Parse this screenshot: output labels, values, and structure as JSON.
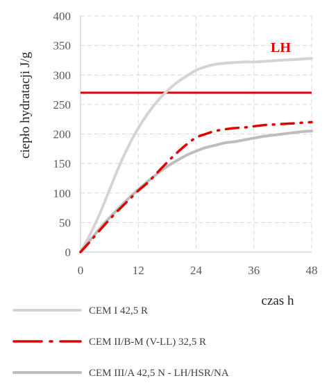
{
  "chart_data": {
    "type": "line",
    "title": "",
    "xlabel": "czas h",
    "ylabel": "ciepło hydratacji J/g",
    "xlim": [
      0,
      48
    ],
    "ylim": [
      0,
      400
    ],
    "xticks": [
      0,
      12,
      24,
      36,
      48
    ],
    "yticks": [
      0,
      50,
      100,
      150,
      200,
      250,
      300,
      350,
      400
    ],
    "grid": true,
    "legend_position": "bottom",
    "series": [
      {
        "name": "CEM I 42,5 R",
        "color": "#d4d4d4",
        "style": "solid",
        "x": [
          0,
          2,
          4,
          6,
          8,
          10,
          12,
          14,
          16,
          18,
          20,
          22,
          24,
          26,
          28,
          30,
          32,
          34,
          36,
          38,
          40,
          42,
          44,
          46,
          48
        ],
        "y": [
          0,
          30,
          65,
          105,
          145,
          180,
          210,
          235,
          256,
          273,
          287,
          298,
          308,
          314,
          318,
          320,
          321,
          322,
          322,
          323,
          324,
          325,
          326,
          327,
          328
        ]
      },
      {
        "name": "CEM II/B-M (V-LL) 32,5 R",
        "color": "#e00000",
        "style": "dash-dot",
        "x": [
          0,
          2,
          4,
          6,
          8,
          10,
          12,
          14,
          16,
          18,
          20,
          22,
          24,
          26,
          28,
          30,
          32,
          34,
          36,
          38,
          40,
          42,
          44,
          46,
          48
        ],
        "y": [
          0,
          18,
          37,
          55,
          72,
          88,
          104,
          118,
          135,
          152,
          168,
          182,
          194,
          200,
          205,
          208,
          210,
          211,
          213,
          215,
          216,
          217,
          218,
          219,
          220
        ]
      },
      {
        "name": "CEM III/A 42,5 N - LH/HSR/NA",
        "color": "#bdbdbd",
        "style": "solid",
        "x": [
          0,
          2,
          4,
          6,
          8,
          10,
          12,
          14,
          16,
          18,
          20,
          22,
          24,
          26,
          28,
          30,
          32,
          34,
          36,
          38,
          40,
          42,
          44,
          46,
          48
        ],
        "y": [
          0,
          20,
          40,
          58,
          75,
          91,
          106,
          120,
          133,
          145,
          155,
          164,
          171,
          177,
          181,
          185,
          187,
          190,
          193,
          196,
          198,
          200,
          202,
          204,
          205
        ]
      }
    ],
    "reference_line": {
      "label": "LH",
      "y": 270,
      "color": "#e00000"
    }
  }
}
